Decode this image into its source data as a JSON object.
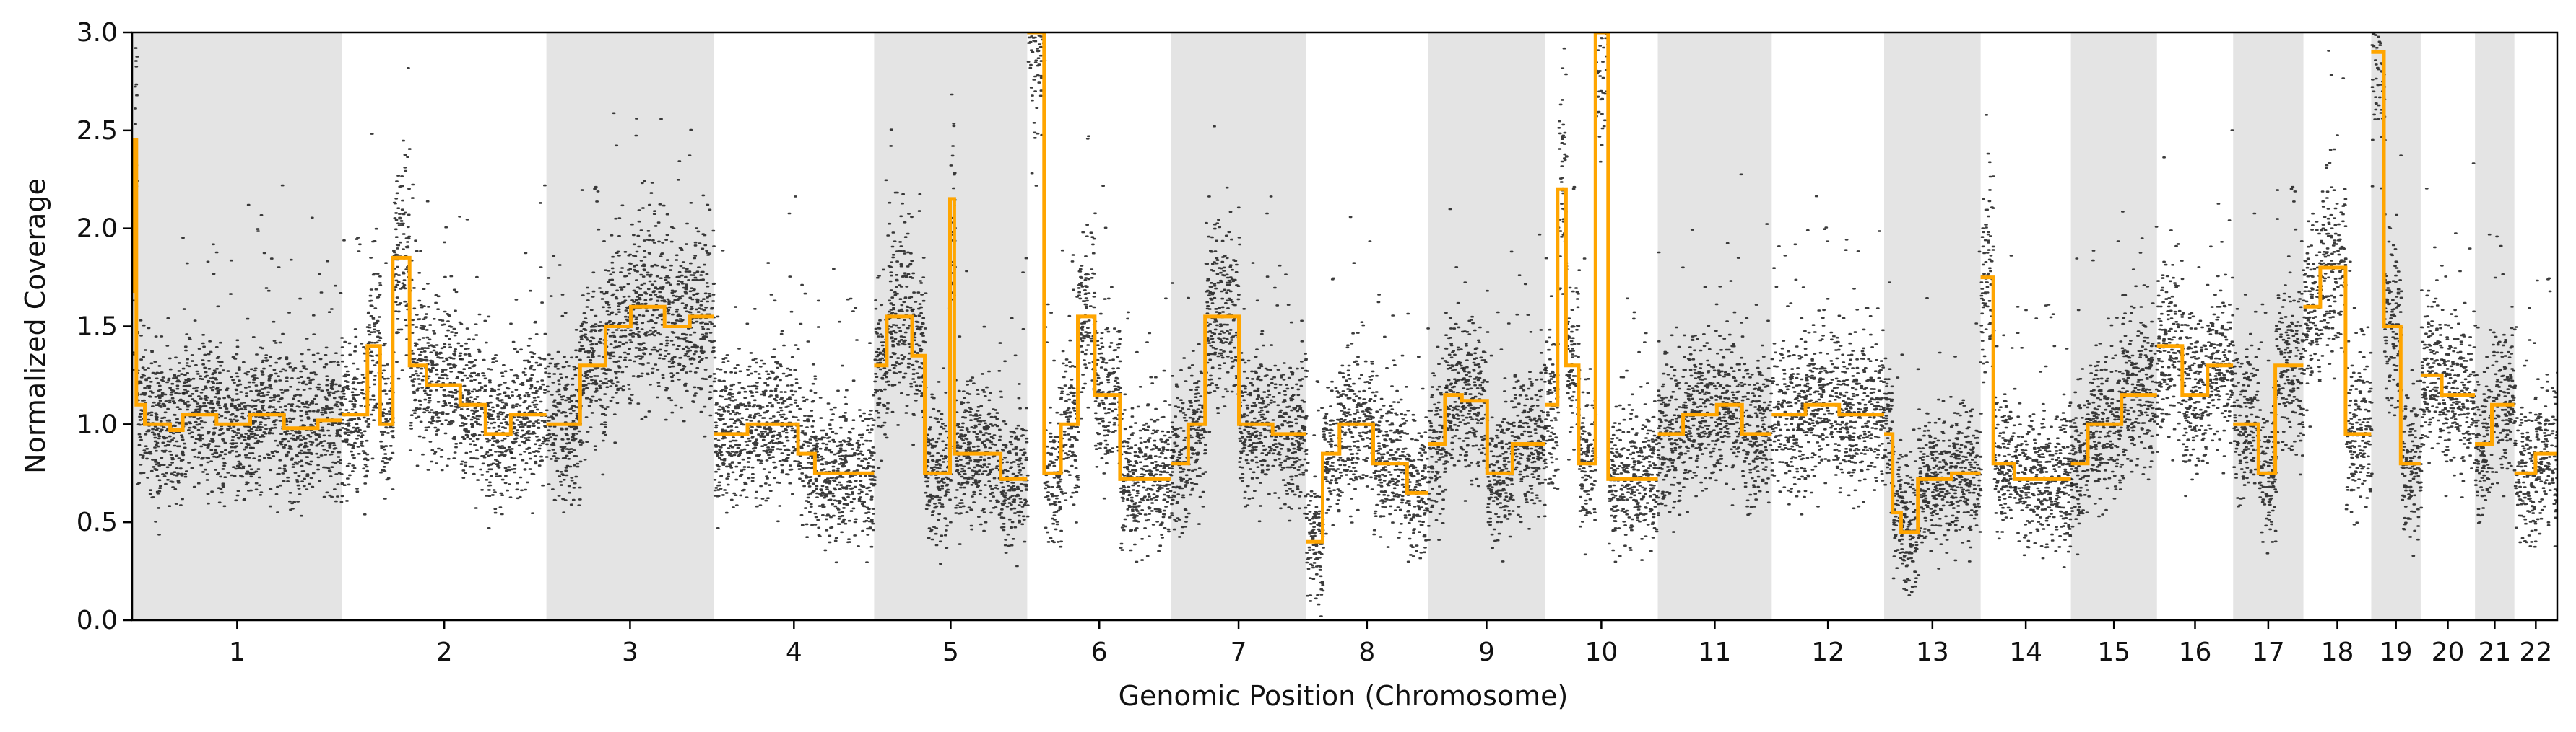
{
  "chart_data": {
    "type": "scatter",
    "title": "",
    "xlabel": "Genomic Position (Chromosome)",
    "ylabel": "Normalized Coverage",
    "ylim": [
      0,
      3
    ],
    "yticks": [
      "0.0",
      "0.5",
      "1.0",
      "1.5",
      "2.0",
      "2.5",
      "3.0"
    ],
    "grid": false,
    "shaded_alternate_chromosomes": true,
    "colors": {
      "points": "#1a1a1a",
      "segments": "#ffa500",
      "shade": "#e4e4e4"
    },
    "chromosomes": [
      {
        "label": "1",
        "start": 0.0,
        "end": 248.9,
        "shaded": true,
        "segments": [
          [
            0,
            2,
            1.68
          ],
          [
            2,
            5,
            2.45
          ],
          [
            5,
            15,
            1.1
          ],
          [
            15,
            45,
            1.0
          ],
          [
            45,
            60,
            0.97
          ],
          [
            60,
            100,
            1.05
          ],
          [
            100,
            140,
            1.0
          ],
          [
            140,
            180,
            1.05
          ],
          [
            180,
            220,
            0.98
          ],
          [
            220,
            248.9,
            1.02
          ]
        ]
      },
      {
        "label": "2",
        "start": 248.9,
        "end": 491.1,
        "shaded": false,
        "segments": [
          [
            0,
            30,
            1.05
          ],
          [
            30,
            45,
            1.4
          ],
          [
            45,
            60,
            1.0
          ],
          [
            60,
            80,
            1.85
          ],
          [
            80,
            100,
            1.3
          ],
          [
            100,
            140,
            1.2
          ],
          [
            140,
            170,
            1.1
          ],
          [
            170,
            200,
            0.95
          ],
          [
            200,
            242.2,
            1.05
          ]
        ]
      },
      {
        "label": "3",
        "start": 491.1,
        "end": 689.4,
        "shaded": true,
        "segments": [
          [
            0,
            40,
            1.0
          ],
          [
            40,
            70,
            1.3
          ],
          [
            70,
            100,
            1.5
          ],
          [
            100,
            140,
            1.6
          ],
          [
            140,
            170,
            1.5
          ],
          [
            170,
            198.3,
            1.55
          ]
        ]
      },
      {
        "label": "4",
        "start": 689.4,
        "end": 879.6,
        "shaded": false,
        "segments": [
          [
            0,
            40,
            0.95
          ],
          [
            40,
            100,
            1.0
          ],
          [
            100,
            120,
            0.85
          ],
          [
            120,
            190.2,
            0.75
          ]
        ]
      },
      {
        "label": "5",
        "start": 879.6,
        "end": 1061.1,
        "shaded": true,
        "segments": [
          [
            0,
            15,
            1.3
          ],
          [
            15,
            45,
            1.55
          ],
          [
            45,
            60,
            1.35
          ],
          [
            60,
            90,
            0.75
          ],
          [
            90,
            95,
            2.15
          ],
          [
            95,
            150,
            0.85
          ],
          [
            150,
            181.5,
            0.72
          ]
        ]
      },
      {
        "label": "6",
        "start": 1061.1,
        "end": 1232.0,
        "shaded": false,
        "segments": [
          [
            0,
            20,
            3.0
          ],
          [
            20,
            40,
            0.75
          ],
          [
            40,
            60,
            1.0
          ],
          [
            60,
            80,
            1.55
          ],
          [
            80,
            110,
            1.15
          ],
          [
            110,
            170.9,
            0.72
          ]
        ]
      },
      {
        "label": "7",
        "start": 1232.0,
        "end": 1391.3,
        "shaded": true,
        "segments": [
          [
            0,
            20,
            0.8
          ],
          [
            20,
            40,
            1.0
          ],
          [
            40,
            80,
            1.55
          ],
          [
            80,
            120,
            1.0
          ],
          [
            120,
            159.3,
            0.95
          ]
        ]
      },
      {
        "label": "8",
        "start": 1391.3,
        "end": 1536.4,
        "shaded": false,
        "segments": [
          [
            0,
            20,
            0.4
          ],
          [
            20,
            40,
            0.85
          ],
          [
            40,
            80,
            1.0
          ],
          [
            80,
            120,
            0.8
          ],
          [
            120,
            145.1,
            0.65
          ]
        ]
      },
      {
        "label": "9",
        "start": 1536.4,
        "end": 1674.8,
        "shaded": true,
        "segments": [
          [
            0,
            20,
            0.9
          ],
          [
            20,
            40,
            1.15
          ],
          [
            40,
            70,
            1.12
          ],
          [
            70,
            100,
            0.75
          ],
          [
            100,
            138.4,
            0.9
          ]
        ]
      },
      {
        "label": "10",
        "start": 1674.8,
        "end": 1808.6,
        "shaded": false,
        "segments": [
          [
            0,
            15,
            1.1
          ],
          [
            15,
            25,
            2.2
          ],
          [
            25,
            40,
            1.3
          ],
          [
            40,
            60,
            0.8
          ],
          [
            60,
            75,
            3.0
          ],
          [
            75,
            100,
            0.72
          ],
          [
            100,
            133.8,
            0.72
          ]
        ]
      },
      {
        "label": "11",
        "start": 1808.6,
        "end": 1943.7,
        "shaded": true,
        "segments": [
          [
            0,
            30,
            0.95
          ],
          [
            30,
            70,
            1.05
          ],
          [
            70,
            100,
            1.1
          ],
          [
            100,
            135.1,
            0.95
          ]
        ]
      },
      {
        "label": "12",
        "start": 1943.7,
        "end": 2077.0,
        "shaded": false,
        "segments": [
          [
            0,
            40,
            1.05
          ],
          [
            40,
            80,
            1.1
          ],
          [
            80,
            133.3,
            1.05
          ]
        ]
      },
      {
        "label": "13",
        "start": 2077.0,
        "end": 2191.4,
        "shaded": true,
        "segments": [
          [
            0,
            10,
            0.95
          ],
          [
            10,
            20,
            0.55
          ],
          [
            20,
            40,
            0.45
          ],
          [
            40,
            80,
            0.72
          ],
          [
            80,
            114.4,
            0.75
          ]
        ]
      },
      {
        "label": "14",
        "start": 2191.4,
        "end": 2298.4,
        "shaded": false,
        "segments": [
          [
            0,
            15,
            1.75
          ],
          [
            15,
            40,
            0.8
          ],
          [
            40,
            107,
            0.72
          ]
        ]
      },
      {
        "label": "15",
        "start": 2298.4,
        "end": 2400.4,
        "shaded": true,
        "segments": [
          [
            0,
            20,
            0.8
          ],
          [
            20,
            60,
            1.0
          ],
          [
            60,
            102,
            1.15
          ]
        ]
      },
      {
        "label": "16",
        "start": 2400.4,
        "end": 2490.7,
        "shaded": false,
        "segments": [
          [
            0,
            30,
            1.4
          ],
          [
            30,
            60,
            1.15
          ],
          [
            60,
            90.3,
            1.3
          ]
        ]
      },
      {
        "label": "17",
        "start": 2490.7,
        "end": 2574.0,
        "shaded": true,
        "segments": [
          [
            0,
            30,
            1.0
          ],
          [
            30,
            50,
            0.75
          ],
          [
            50,
            83.3,
            1.3
          ]
        ]
      },
      {
        "label": "18",
        "start": 2574.0,
        "end": 2654.4,
        "shaded": false,
        "segments": [
          [
            0,
            20,
            1.6
          ],
          [
            20,
            50,
            1.8
          ],
          [
            50,
            80.4,
            0.95
          ]
        ]
      },
      {
        "label": "19",
        "start": 2654.4,
        "end": 2713.0,
        "shaded": true,
        "segments": [
          [
            0,
            15,
            2.9
          ],
          [
            15,
            35,
            1.5
          ],
          [
            35,
            58.6,
            0.8
          ]
        ]
      },
      {
        "label": "20",
        "start": 2713.0,
        "end": 2777.4,
        "shaded": false,
        "segments": [
          [
            0,
            25,
            1.25
          ],
          [
            25,
            64.4,
            1.15
          ]
        ]
      },
      {
        "label": "21",
        "start": 2777.4,
        "end": 2824.1,
        "shaded": true,
        "segments": [
          [
            0,
            20,
            0.9
          ],
          [
            20,
            46.7,
            1.1
          ]
        ]
      },
      {
        "label": "22",
        "start": 2824.1,
        "end": 2874.9,
        "shaded": false,
        "segments": [
          [
            0,
            25,
            0.75
          ],
          [
            25,
            50.8,
            0.85
          ]
        ]
      }
    ]
  }
}
